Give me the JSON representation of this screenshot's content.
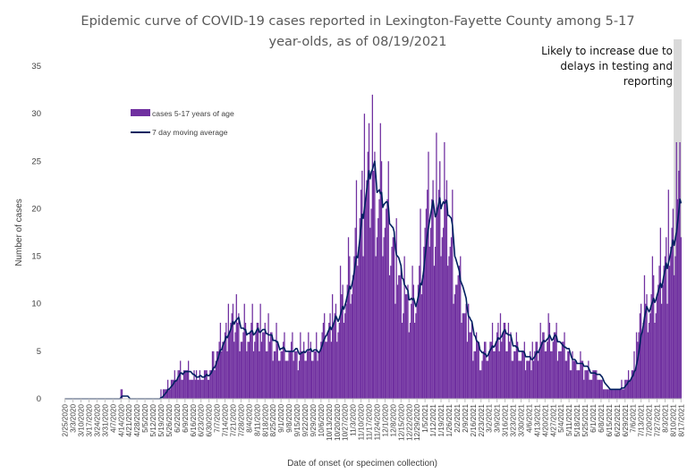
{
  "chart_data": {
    "type": "bar",
    "title_lines": [
      "Epidemic curve of COVID-19 cases reported in Lexington-Fayette County among 5-17",
      "year-olds, as of 08/19/2021"
    ],
    "xlabel": "Date of onset (or specimen collection)",
    "ylabel": "Number of cases",
    "ylim": [
      0,
      35
    ],
    "yticks": [
      0,
      5,
      10,
      15,
      20,
      25,
      30,
      35
    ],
    "x_start": "2/25/2020",
    "x_end": "8/17/2021",
    "x_ticks": [
      "2/25/2020",
      "3/3/2020",
      "3/10/2020",
      "3/17/2020",
      "3/24/2020",
      "3/31/2020",
      "4/7/2020",
      "4/14/2020",
      "4/21/2020",
      "4/28/2020",
      "5/5/2020",
      "5/12/2020",
      "5/19/2020",
      "5/26/2020",
      "6/2/2020",
      "6/9/2020",
      "6/16/2020",
      "6/23/2020",
      "6/30/2020",
      "7/7/2020",
      "7/14/2020",
      "7/21/2020",
      "7/28/2020",
      "8/4/2020",
      "8/11/2020",
      "8/18/2020",
      "8/25/2020",
      "9/1/2020",
      "9/8/2020",
      "9/15/2020",
      "9/22/2020",
      "9/29/2020",
      "10/6/2020",
      "10/13/2020",
      "10/20/2020",
      "10/27/2020",
      "11/3/2020",
      "11/10/2020",
      "11/17/2020",
      "11/24/2020",
      "12/1/2020",
      "12/8/2020",
      "12/15/2020",
      "12/22/2020",
      "12/29/2020",
      "1/5/2021",
      "1/12/2021",
      "1/19/2021",
      "1/26/2021",
      "2/2/2021",
      "2/9/2021",
      "2/16/2021",
      "2/23/2021",
      "3/2/2021",
      "3/9/2021",
      "3/16/2021",
      "3/23/2021",
      "3/30/2021",
      "4/6/2021",
      "4/13/2021",
      "4/20/2021",
      "4/27/2021",
      "5/4/2021",
      "5/11/2021",
      "5/18/2021",
      "5/25/2021",
      "6/1/2021",
      "6/8/2021",
      "6/15/2021",
      "6/22/2021",
      "6/29/2021",
      "7/6/2021",
      "7/13/2021",
      "7/20/2021",
      "7/27/2021",
      "8/3/2021",
      "8/10/2021",
      "8/17/2021"
    ],
    "x_tick_labels": [
      "2/25/2020",
      "3/3/2020",
      "3/10/2020",
      "3/17/2020",
      "3/24/2020",
      "3/31/2020",
      "4/7/2020",
      "4/14/2020",
      "4/21/2020",
      "4/28/2020",
      "5/5/2020",
      "5/12/2020",
      "5/19/2020",
      "5/26/2020",
      "6/2/2020",
      "6/9/2020",
      "6/16/2020",
      "6/23/2020",
      "6/30/2020",
      "7/7/2020",
      "7/14/2020",
      "7/21/2020",
      "7/28/2020",
      "8/4/2020",
      "8/11/2020",
      "8/18/2020",
      "8/25/2020",
      "9/1/2020",
      "9/8/2020",
      "9/15/2020",
      "9/22/2020",
      "9/29/2020",
      "10/6/2020",
      "10/13/2020",
      "10/20/2020",
      "10/27/2020",
      "11/3/2020",
      "11/10/2020",
      "11/17/2020",
      "11/24/2020",
      "12/1/2020",
      "12/8/2020",
      "12/15/2020",
      "12/22/2020",
      "12/29/2020",
      "1/5/2021",
      "1/12/2021",
      "1/19/2021",
      "1/26/2021",
      "2/2/2021",
      "2/9/2021",
      "2/16/2021",
      "2/23/2021",
      "3/2/2021",
      "3/9/2021",
      "3/16/2021",
      "3/23/2021",
      "3/30/2021",
      "4/6/2021",
      "4/13/2021",
      "4/20/2021",
      "4/27/2021",
      "5/4/2021",
      "5/11/2021",
      "5/18/2021",
      "5/25/2021",
      "6/1/2021",
      "6/8/2021",
      "6/15/2021",
      "6/22/2021",
      "6/29/2021",
      "7/6/2021",
      "7/13/2021",
      "7/20/2021",
      "7/27/2021",
      "8/3/2021",
      "8/10/2021",
      "8/17/2021"
    ],
    "weekly_avg": [
      0,
      0,
      0.1,
      0.1,
      0.1,
      0.1,
      0.3,
      0.5,
      0.3,
      0.1,
      0.1,
      0.1,
      0.5,
      1.5,
      2.5,
      3,
      2,
      2.3,
      2.5,
      4.5,
      6.5,
      7.5,
      7,
      6.5,
      7,
      6.5,
      5.5,
      5,
      4.5,
      4.5,
      4.8,
      4.5,
      6,
      7,
      8.5,
      10.5,
      13,
      19,
      23,
      21,
      19,
      15,
      11,
      9,
      11,
      17,
      19,
      20,
      17,
      12,
      8,
      6,
      4,
      5,
      6,
      6.5,
      5,
      4.5,
      4,
      5,
      6,
      6.5,
      5,
      4,
      3.5,
      3,
      2.5,
      1.5,
      1,
      1,
      1.5,
      3,
      8,
      10,
      11,
      14,
      16,
      22
    ],
    "series": [
      {
        "name": "cases 5-17 years of age",
        "type": "bar",
        "color": "#7030a0",
        "spike_every_days": 7
      },
      {
        "name": "7 day moving average",
        "type": "line",
        "color": "#002060"
      }
    ],
    "highlight": {
      "x_from": "8/11/2021",
      "x_to": "8/17/2021",
      "color": "#d9d9d9"
    },
    "annotation": [
      "Likely to increase due to",
      "delays in testing and",
      "reporting"
    ],
    "legend": "upper-left inside plot"
  }
}
